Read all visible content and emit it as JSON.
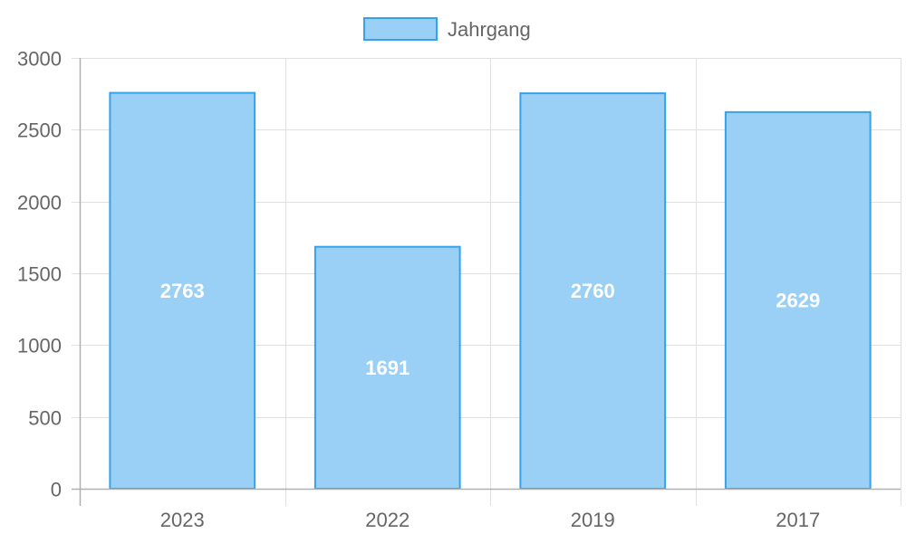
{
  "chart_data": {
    "type": "bar",
    "categories": [
      "2023",
      "2022",
      "2019",
      "2017"
    ],
    "series": [
      {
        "name": "Jahrgang",
        "values": [
          2763,
          1691,
          2760,
          2629
        ]
      }
    ],
    "ylim": [
      0,
      3000
    ],
    "yticks": [
      0,
      500,
      1000,
      1500,
      2000,
      2500,
      3000
    ],
    "grid": true,
    "legend_position": "top-center",
    "colors": {
      "bar_fill": "#9ad0f5",
      "bar_stroke": "#36a2eb",
      "grid": "#e0e0e0",
      "axis": "#b0b0b0",
      "tick_text": "#666666",
      "data_label": "#ffffff"
    }
  }
}
